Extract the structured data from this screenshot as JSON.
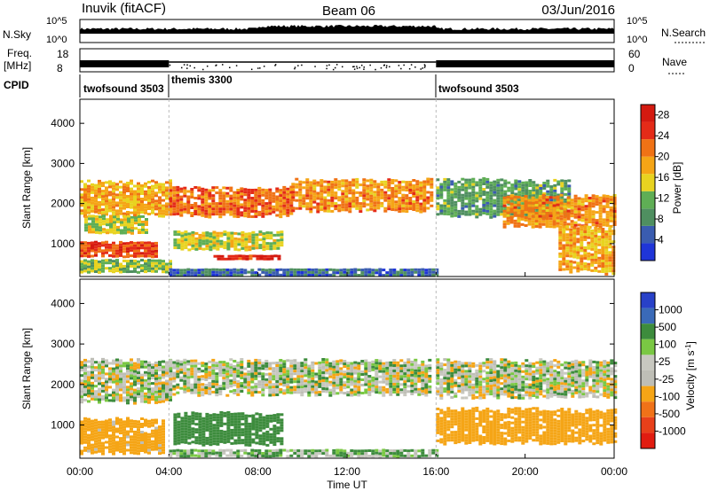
{
  "header": {
    "station": "Inuvik (fitACF)",
    "beam": "Beam 06",
    "date": "03/Jun/2016"
  },
  "noise_panel": {
    "left_label": "N.Sky",
    "right_label": "N.Search",
    "left_ticks": [
      "10^5",
      "10^0"
    ],
    "right_ticks": [
      "10^5",
      "10^0"
    ]
  },
  "freq_panel": {
    "left_label_line1": "Freq.",
    "left_label_line2": "[MHz]",
    "right_label": "Nave",
    "left_ticks": [
      "18",
      "8"
    ],
    "right_ticks": [
      "60",
      "0"
    ]
  },
  "cpid_panel": {
    "label": "CPID",
    "segments": [
      {
        "name": "twofsound 3503",
        "start_hour": 0,
        "end_hour": 4
      },
      {
        "name": "themis 3300",
        "start_hour": 4,
        "end_hour": 16
      },
      {
        "name": "twofsound 3503",
        "start_hour": 16,
        "end_hour": 24
      }
    ]
  },
  "colors": {
    "power_scale": [
      "#1f35d8",
      "#3a5cb0",
      "#4f8f60",
      "#5fae55",
      "#e8d320",
      "#f5a516",
      "#f07215",
      "#e42b18",
      "#d41a10"
    ],
    "velocity_scale": [
      "#2841c8",
      "#3a6ab8",
      "#3d8c3d",
      "#7ac843",
      "#c8c8c0",
      "#bebeb6",
      "#f5a516",
      "#f07218",
      "#e8401a",
      "#e11c10"
    ]
  },
  "chart_data": [
    {
      "type": "heatmap",
      "title": "Power",
      "xlabel": "Time UT",
      "ylabel": "Slant Range [km]",
      "xlim": [
        0,
        24
      ],
      "ylim": [
        180,
        4600
      ],
      "x_ticks": [
        "00:00",
        "04:00",
        "08:00",
        "12:00",
        "16:00",
        "20:00",
        "00:00"
      ],
      "y_ticks": [
        1000,
        2000,
        3000,
        4000
      ],
      "colorbar_label": "Power [dB]",
      "colorbar_ticks": [
        "28",
        "24",
        "20",
        "16",
        "12",
        "8",
        "4"
      ],
      "colorbar_range": [
        0,
        30
      ],
      "bands": [
        {
          "t0": 0.0,
          "t1": 4.0,
          "r0": 1700,
          "r1": 2550,
          "value": 18
        },
        {
          "t0": 0.2,
          "t1": 3.0,
          "r0": 1250,
          "r1": 1700,
          "value": 14
        },
        {
          "t0": 0.0,
          "t1": 3.5,
          "r0": 700,
          "r1": 1050,
          "value": 24
        },
        {
          "t0": 0.0,
          "t1": 4.0,
          "r0": 280,
          "r1": 600,
          "value": 12
        },
        {
          "t0": 4.0,
          "t1": 9.5,
          "r0": 1700,
          "r1": 2400,
          "value": 22
        },
        {
          "t0": 9.5,
          "t1": 15.8,
          "r0": 1850,
          "r1": 2600,
          "value": 20
        },
        {
          "t0": 6.0,
          "t1": 9.0,
          "r0": 600,
          "r1": 720,
          "value": 26
        },
        {
          "t0": 4.2,
          "t1": 9.0,
          "r0": 850,
          "r1": 1300,
          "value": 15
        },
        {
          "t0": 4.0,
          "t1": 16.0,
          "r0": 220,
          "r1": 380,
          "value": 6
        },
        {
          "t0": 16.0,
          "t1": 22.0,
          "r0": 1700,
          "r1": 2600,
          "value": 10
        },
        {
          "t0": 19.0,
          "t1": 24.0,
          "r0": 1450,
          "r1": 2200,
          "value": 20
        },
        {
          "t0": 21.5,
          "t1": 24.0,
          "r0": 300,
          "r1": 1400,
          "value": 18
        }
      ]
    },
    {
      "type": "heatmap",
      "title": "Velocity",
      "xlabel": "Time UT",
      "ylabel": "Slant Range [km]",
      "xlim": [
        0,
        24
      ],
      "ylim": [
        180,
        4600
      ],
      "x_ticks": [
        "00:00",
        "04:00",
        "08:00",
        "12:00",
        "16:00",
        "20:00",
        "00:00"
      ],
      "y_ticks": [
        1000,
        2000,
        3000,
        4000
      ],
      "colorbar_label": "Velocity [m s^-1]",
      "colorbar_ticks": [
        "1000",
        "500",
        "100",
        "25",
        "-25",
        "-100",
        "-500",
        "-1000"
      ],
      "bands": [
        {
          "t0": 0.0,
          "t1": 4.0,
          "r0": 1600,
          "r1": 2600,
          "value": 0
        },
        {
          "t0": 4.0,
          "t1": 15.8,
          "r0": 1750,
          "r1": 2600,
          "value": 0
        },
        {
          "t0": 0.0,
          "t1": 3.8,
          "r0": 350,
          "r1": 1150,
          "value": -150
        },
        {
          "t0": 4.2,
          "t1": 9.0,
          "r0": 550,
          "r1": 1300,
          "value": 200
        },
        {
          "t0": 16.0,
          "t1": 24.0,
          "r0": 1700,
          "r1": 2600,
          "value": 0
        },
        {
          "t0": 16.0,
          "t1": 24.0,
          "r0": 550,
          "r1": 1400,
          "value": -200
        },
        {
          "t0": 4.0,
          "t1": 16.0,
          "r0": 220,
          "r1": 400,
          "value": 60
        }
      ]
    }
  ]
}
